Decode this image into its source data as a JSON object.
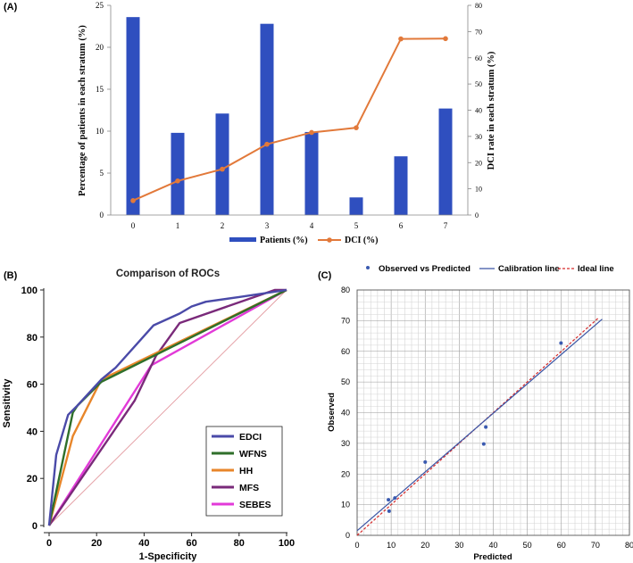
{
  "colors": {
    "bar": "#2f4fbf",
    "dci_line": "#e2793a",
    "edci": "#4a4aa8",
    "wfns": "#2f6f2a",
    "hh": "#e8862a",
    "mfs": "#7a2a7a",
    "sebes": "#e23ad8",
    "diagonal": "#e39aa0",
    "calibration": "#3a55a5",
    "ideal": "#d62a2a",
    "observed": "#3a5ab0"
  },
  "chart_data": [
    {
      "type": "bar",
      "panel_label": "(A)",
      "categories": [
        "0",
        "1",
        "2",
        "3",
        "4",
        "5",
        "6",
        "7"
      ],
      "series": [
        {
          "name": "Patients (%)",
          "axis": "left",
          "kind": "bar",
          "values": [
            23.6,
            9.8,
            12.1,
            22.8,
            9.9,
            2.1,
            7.0,
            12.7
          ]
        },
        {
          "name": "DCI (%)",
          "axis": "right",
          "kind": "line",
          "values": [
            5.5,
            13.0,
            17.5,
            27.0,
            31.5,
            33.3,
            67.2,
            67.3
          ]
        }
      ],
      "ylabel": "Percentage of patients in each stratum (%)",
      "y2label": "DCI rate in each stratum (%)",
      "ylim": [
        0,
        25
      ],
      "y2lim": [
        0,
        80
      ],
      "yticks": [
        "0",
        "5",
        "10",
        "15",
        "20",
        "25"
      ],
      "y2ticks": [
        "0",
        "10",
        "20",
        "30",
        "40",
        "50",
        "60",
        "70",
        "80"
      ],
      "legend": [
        "Patients (%)",
        "DCI (%)"
      ]
    },
    {
      "type": "line",
      "panel_label": "(B)",
      "title": "Comparison of ROCs",
      "xlabel": "1-Specificity",
      "ylabel": "Sensitivity",
      "xlim": [
        0,
        100
      ],
      "ylim": [
        0,
        100
      ],
      "xticks": [
        "0",
        "20",
        "40",
        "60",
        "80",
        "100"
      ],
      "yticks": [
        "0",
        "20",
        "40",
        "60",
        "80",
        "100"
      ],
      "legend_position": "bottom-right",
      "series": [
        {
          "name": "EDCI",
          "x": [
            0,
            3,
            8,
            12,
            22,
            28,
            44,
            55,
            60,
            66,
            80,
            100
          ],
          "y": [
            0,
            30,
            47,
            51,
            62,
            67,
            85,
            90,
            93,
            95,
            97,
            100
          ]
        },
        {
          "name": "WFNS",
          "x": [
            0,
            10,
            12,
            22,
            100
          ],
          "y": [
            0,
            48,
            51,
            61,
            100
          ]
        },
        {
          "name": "HH",
          "x": [
            0,
            10,
            22,
            100
          ],
          "y": [
            0,
            38,
            62,
            100
          ]
        },
        {
          "name": "MFS",
          "x": [
            0,
            36,
            45,
            55,
            95,
            100
          ],
          "y": [
            0,
            53,
            72,
            86,
            100,
            100
          ]
        },
        {
          "name": "SEBES",
          "x": [
            0,
            43,
            100
          ],
          "y": [
            0,
            68,
            100
          ]
        }
      ]
    },
    {
      "type": "scatter",
      "panel_label": "(C)",
      "xlabel": "Predicted",
      "ylabel": "Observed",
      "xlim": [
        0,
        80
      ],
      "ylim": [
        0,
        80
      ],
      "xticks": [
        "0",
        "10",
        "20",
        "30",
        "40",
        "50",
        "60",
        "70",
        "80"
      ],
      "yticks": [
        "0",
        "10",
        "20",
        "30",
        "40",
        "50",
        "60",
        "70",
        "80"
      ],
      "legend": [
        "Observed vs Predicted",
        "Calibration line",
        "Ideal line"
      ],
      "points": {
        "x": [
          9.2,
          9.4,
          11.1,
          20.0,
          37.2,
          37.8,
          59.9
        ],
        "y": [
          11.6,
          7.9,
          12.2,
          23.9,
          29.8,
          35.3,
          62.7
        ]
      },
      "calibration_line": {
        "x": [
          0,
          72
        ],
        "y": [
          1.5,
          70.5
        ]
      },
      "ideal_line": {
        "x": [
          0,
          71
        ],
        "y": [
          0,
          71
        ]
      }
    }
  ]
}
